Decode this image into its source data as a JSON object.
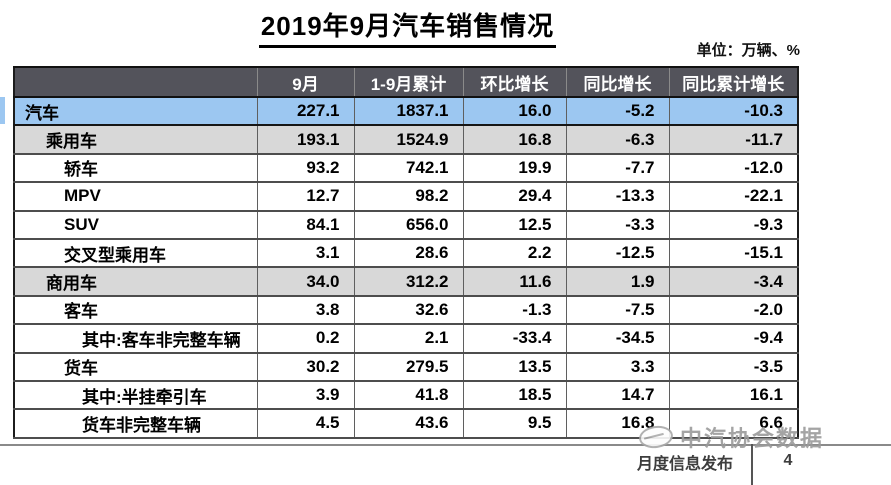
{
  "title": "2019年9月汽车销售情况",
  "unit_label": "单位：万辆、%",
  "colors": {
    "header_bg": "#53535b",
    "highlight_row_bg": "#9cc7f1",
    "subtotal_row_bg": "#d8d8d8"
  },
  "chart_data": {
    "type": "table",
    "title": "2019年9月汽车销售情况",
    "unit": "万辆、%",
    "columns": [
      "",
      "9月",
      "1-9月累计",
      "环比增长",
      "同比增长",
      "同比累计增长"
    ],
    "rows": [
      {
        "label": "汽车",
        "level": 0,
        "style": "blue",
        "values": [
          "227.1",
          "1837.1",
          "16.0",
          "-5.2",
          "-10.3"
        ]
      },
      {
        "label": "乘用车",
        "level": 1,
        "style": "gray",
        "values": [
          "193.1",
          "1524.9",
          "16.8",
          "-6.3",
          "-11.7"
        ]
      },
      {
        "label": "轿车",
        "level": 2,
        "style": "white",
        "values": [
          "93.2",
          "742.1",
          "19.9",
          "-7.7",
          "-12.0"
        ]
      },
      {
        "label": "MPV",
        "level": 2,
        "style": "white",
        "values": [
          "12.7",
          "98.2",
          "29.4",
          "-13.3",
          "-22.1"
        ]
      },
      {
        "label": "SUV",
        "level": 2,
        "style": "white",
        "values": [
          "84.1",
          "656.0",
          "12.5",
          "-3.3",
          "-9.3"
        ]
      },
      {
        "label": "交叉型乘用车",
        "level": 2,
        "style": "white",
        "values": [
          "3.1",
          "28.6",
          "2.2",
          "-12.5",
          "-15.1"
        ]
      },
      {
        "label": "商用车",
        "level": 1,
        "style": "gray",
        "values": [
          "34.0",
          "312.2",
          "11.6",
          "1.9",
          "-3.4"
        ]
      },
      {
        "label": "客车",
        "level": 2,
        "style": "white",
        "values": [
          "3.8",
          "32.6",
          "-1.3",
          "-7.5",
          "-2.0"
        ]
      },
      {
        "label": "其中:客车非完整车辆",
        "level": 3,
        "style": "white",
        "values": [
          "0.2",
          "2.1",
          "-33.4",
          "-34.5",
          "-9.4"
        ]
      },
      {
        "label": "货车",
        "level": 2,
        "style": "white",
        "values": [
          "30.2",
          "279.5",
          "13.5",
          "3.3",
          "-3.5"
        ]
      },
      {
        "label": "其中:半挂牵引车",
        "level": 3,
        "style": "white",
        "values": [
          "3.9",
          "41.8",
          "18.5",
          "14.7",
          "16.1"
        ]
      },
      {
        "label": "货车非完整车辆",
        "level": 3,
        "style": "white",
        "values": [
          "4.5",
          "43.6",
          "9.5",
          "16.8",
          "6.6"
        ]
      }
    ]
  },
  "footer": {
    "watermark": "中汽协会数据",
    "publication": "月度信息发布",
    "page_number": "4"
  }
}
